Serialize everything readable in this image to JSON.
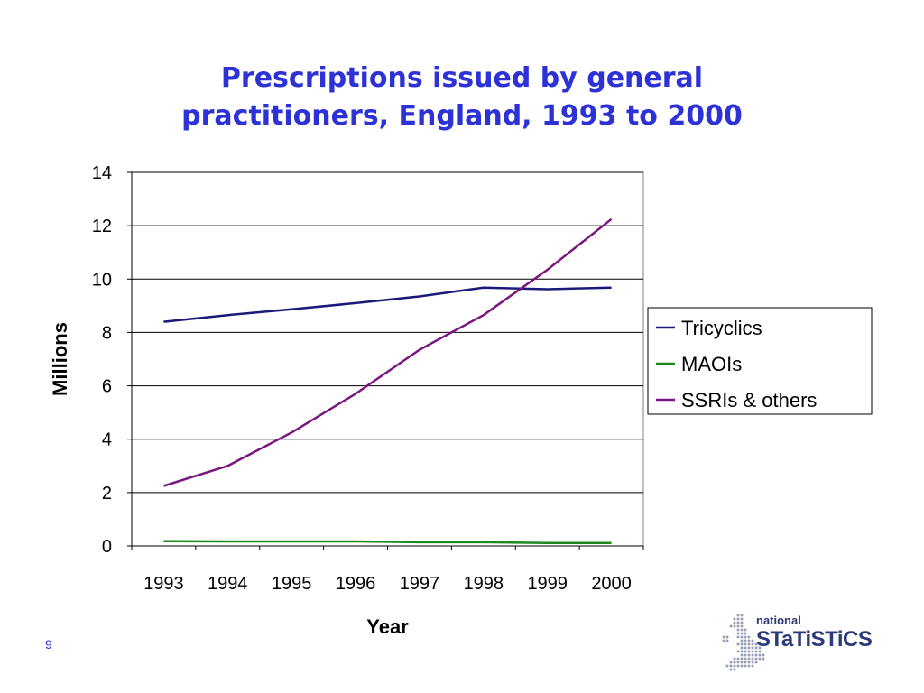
{
  "slide": {
    "title_line1": "Prescriptions issued by general",
    "title_line2": "practitioners, England, 1993 to 2000",
    "page_number": "9"
  },
  "logo": {
    "line1": "national",
    "line2": "STaTiSTiCS",
    "color": "#2b3a7a"
  },
  "chart_data": {
    "type": "line",
    "title": "Prescriptions issued by general practitioners, England, 1993 to 2000",
    "xlabel": "Year",
    "ylabel": "Millions",
    "categories": [
      "1993",
      "1994",
      "1995",
      "1996",
      "1997",
      "1998",
      "1999",
      "2000"
    ],
    "ylim": [
      0,
      14
    ],
    "yticks": [
      0,
      2,
      4,
      6,
      8,
      10,
      12,
      14
    ],
    "grid": true,
    "legend_position": "right",
    "series": [
      {
        "name": "Tricyclics",
        "color": "#1a1a7a",
        "values": [
          8.4,
          8.65,
          8.87,
          9.1,
          9.35,
          9.68,
          9.62,
          9.68
        ]
      },
      {
        "name": "MAOIs",
        "color": "#1e8a1e",
        "values": [
          0.18,
          0.17,
          0.17,
          0.17,
          0.14,
          0.14,
          0.11,
          0.11
        ]
      },
      {
        "name": "SSRIs & others",
        "color": "#7b1680",
        "values": [
          2.25,
          3.0,
          4.25,
          5.7,
          7.35,
          8.65,
          10.35,
          12.25
        ]
      }
    ]
  }
}
